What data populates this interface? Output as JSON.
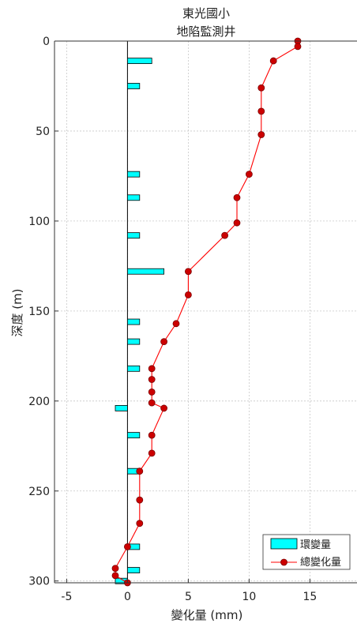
{
  "chart_data": {
    "type": "bar+line",
    "title": [
      "東光國小",
      "地陷監測井"
    ],
    "xlabel": "變化量 (mm)",
    "ylabel": "深度 (m)",
    "xlim": [
      -6,
      19
    ],
    "ylim": [
      0,
      301
    ],
    "y_reversed": true,
    "xticks": [
      -5,
      0,
      5,
      10,
      15
    ],
    "yticks": [
      0,
      50,
      100,
      150,
      200,
      250,
      300
    ],
    "grid": true,
    "legend_position": "bottom-right",
    "series": [
      {
        "name": "環變量",
        "type": "barh",
        "color": "#00ffff",
        "points": [
          {
            "depth": 11,
            "value": 2
          },
          {
            "depth": 25,
            "value": 1
          },
          {
            "depth": 74,
            "value": 1
          },
          {
            "depth": 87,
            "value": 1
          },
          {
            "depth": 108,
            "value": 1
          },
          {
            "depth": 128,
            "value": 3
          },
          {
            "depth": 156,
            "value": 1
          },
          {
            "depth": 167,
            "value": 1
          },
          {
            "depth": 182,
            "value": 1
          },
          {
            "depth": 204,
            "value": -1
          },
          {
            "depth": 219,
            "value": 1
          },
          {
            "depth": 239,
            "value": 1
          },
          {
            "depth": 281,
            "value": 1
          },
          {
            "depth": 294,
            "value": 1
          },
          {
            "depth": 300,
            "value": -1
          }
        ]
      },
      {
        "name": "總變化量",
        "type": "line",
        "color": "#ff0000",
        "marker_color": "#cc0000",
        "points": [
          {
            "depth": 0,
            "value": 14
          },
          {
            "depth": 3,
            "value": 14
          },
          {
            "depth": 11,
            "value": 12
          },
          {
            "depth": 26,
            "value": 11
          },
          {
            "depth": 39,
            "value": 11
          },
          {
            "depth": 52,
            "value": 11
          },
          {
            "depth": 74,
            "value": 10
          },
          {
            "depth": 87,
            "value": 9
          },
          {
            "depth": 101,
            "value": 9
          },
          {
            "depth": 108,
            "value": 8
          },
          {
            "depth": 128,
            "value": 5
          },
          {
            "depth": 141,
            "value": 5
          },
          {
            "depth": 157,
            "value": 4
          },
          {
            "depth": 167,
            "value": 3
          },
          {
            "depth": 182,
            "value": 2
          },
          {
            "depth": 188,
            "value": 2
          },
          {
            "depth": 195,
            "value": 2
          },
          {
            "depth": 201,
            "value": 2
          },
          {
            "depth": 204,
            "value": 3
          },
          {
            "depth": 219,
            "value": 2
          },
          {
            "depth": 229,
            "value": 2
          },
          {
            "depth": 239,
            "value": 1
          },
          {
            "depth": 255,
            "value": 1
          },
          {
            "depth": 268,
            "value": 1
          },
          {
            "depth": 281,
            "value": 0
          },
          {
            "depth": 293,
            "value": -1
          },
          {
            "depth": 297,
            "value": -1
          },
          {
            "depth": 301,
            "value": 0
          }
        ]
      }
    ]
  }
}
